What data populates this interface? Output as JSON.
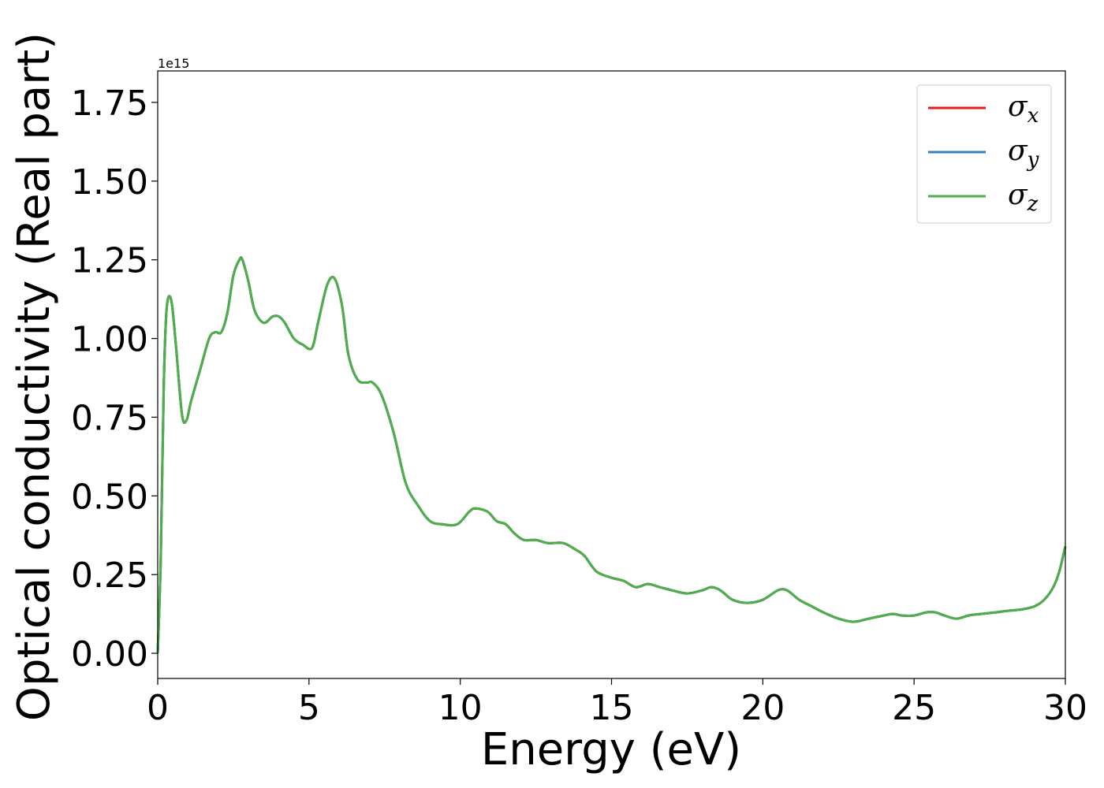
{
  "chart_data": {
    "type": "line",
    "title": "",
    "xlabel": "Energy (eV)",
    "ylabel": "Optical conductivity (Real part)",
    "y_offset_label": "1e15",
    "xlim": [
      0,
      30
    ],
    "ylim": [
      -0.08,
      1.85
    ],
    "xticks": [
      0,
      5,
      10,
      15,
      20,
      25,
      30
    ],
    "xtick_labels": [
      "0",
      "5",
      "10",
      "15",
      "20",
      "25",
      "30"
    ],
    "yticks": [
      0.0,
      0.25,
      0.5,
      0.75,
      1.0,
      1.25,
      1.5,
      1.75
    ],
    "ytick_labels": [
      "0.00",
      "0.25",
      "0.50",
      "0.75",
      "1.00",
      "1.25",
      "1.50",
      "1.75"
    ],
    "grid": false,
    "legend_position": "top-right",
    "x": [
      0,
      0.1,
      0.2,
      0.3,
      0.45,
      0.6,
      0.8,
      0.95,
      1.1,
      1.4,
      1.7,
      1.9,
      2.1,
      2.3,
      2.5,
      2.7,
      2.8,
      3.0,
      3.2,
      3.5,
      3.8,
      4.0,
      4.2,
      4.5,
      4.8,
      5.1,
      5.3,
      5.6,
      5.85,
      6.1,
      6.3,
      6.6,
      6.9,
      7.1,
      7.4,
      7.8,
      8.2,
      8.6,
      9.0,
      9.4,
      9.9,
      10.3,
      10.5,
      10.9,
      11.2,
      11.5,
      11.8,
      12.1,
      12.5,
      12.9,
      13.4,
      13.8,
      14.1,
      14.5,
      15.0,
      15.4,
      15.8,
      16.2,
      16.6,
      17.0,
      17.5,
      18.0,
      18.3,
      18.6,
      19.0,
      19.5,
      20.0,
      20.5,
      20.8,
      21.2,
      21.6,
      22.0,
      22.5,
      23.0,
      23.5,
      24.0,
      24.3,
      24.6,
      25.0,
      25.4,
      25.7,
      26.0,
      26.4,
      26.8,
      27.2,
      27.7,
      28.1,
      28.6,
      29.0,
      29.3,
      29.6,
      29.8,
      30.0
    ],
    "series": [
      {
        "name": "σ",
        "subscript": "x",
        "color": "#e41a1c",
        "values": [
          0.0,
          0.3,
          0.85,
          1.1,
          1.12,
          0.98,
          0.76,
          0.74,
          0.8,
          0.9,
          1.0,
          1.02,
          1.02,
          1.08,
          1.2,
          1.25,
          1.25,
          1.18,
          1.09,
          1.05,
          1.07,
          1.07,
          1.05,
          1.0,
          0.98,
          0.97,
          1.05,
          1.17,
          1.19,
          1.1,
          0.95,
          0.87,
          0.86,
          0.86,
          0.82,
          0.7,
          0.54,
          0.47,
          0.42,
          0.41,
          0.41,
          0.45,
          0.46,
          0.45,
          0.42,
          0.41,
          0.38,
          0.36,
          0.36,
          0.35,
          0.35,
          0.33,
          0.31,
          0.26,
          0.24,
          0.23,
          0.21,
          0.22,
          0.21,
          0.2,
          0.19,
          0.2,
          0.21,
          0.2,
          0.17,
          0.16,
          0.17,
          0.2,
          0.2,
          0.17,
          0.15,
          0.13,
          0.11,
          0.1,
          0.11,
          0.12,
          0.125,
          0.12,
          0.12,
          0.13,
          0.13,
          0.12,
          0.11,
          0.12,
          0.125,
          0.13,
          0.135,
          0.14,
          0.15,
          0.17,
          0.21,
          0.26,
          0.34
        ]
      },
      {
        "name": "σ",
        "subscript": "y",
        "color": "#377eb8",
        "values": [
          0.0,
          0.3,
          0.85,
          1.1,
          1.12,
          0.98,
          0.76,
          0.74,
          0.8,
          0.9,
          1.0,
          1.02,
          1.02,
          1.08,
          1.2,
          1.25,
          1.25,
          1.18,
          1.09,
          1.05,
          1.07,
          1.07,
          1.05,
          1.0,
          0.98,
          0.97,
          1.05,
          1.17,
          1.19,
          1.1,
          0.95,
          0.87,
          0.86,
          0.86,
          0.82,
          0.7,
          0.54,
          0.47,
          0.42,
          0.41,
          0.41,
          0.45,
          0.46,
          0.45,
          0.42,
          0.41,
          0.38,
          0.36,
          0.36,
          0.35,
          0.35,
          0.33,
          0.31,
          0.26,
          0.24,
          0.23,
          0.21,
          0.22,
          0.21,
          0.2,
          0.19,
          0.2,
          0.21,
          0.2,
          0.17,
          0.16,
          0.17,
          0.2,
          0.2,
          0.17,
          0.15,
          0.13,
          0.11,
          0.1,
          0.11,
          0.12,
          0.125,
          0.12,
          0.12,
          0.13,
          0.13,
          0.12,
          0.11,
          0.12,
          0.125,
          0.13,
          0.135,
          0.14,
          0.15,
          0.17,
          0.21,
          0.26,
          0.34
        ]
      },
      {
        "name": "σ",
        "subscript": "z",
        "color": "#4daf4a",
        "values": [
          0.0,
          0.3,
          0.85,
          1.1,
          1.12,
          0.98,
          0.76,
          0.74,
          0.8,
          0.9,
          1.0,
          1.02,
          1.02,
          1.08,
          1.2,
          1.25,
          1.25,
          1.18,
          1.09,
          1.05,
          1.07,
          1.07,
          1.05,
          1.0,
          0.98,
          0.97,
          1.05,
          1.17,
          1.19,
          1.1,
          0.95,
          0.87,
          0.86,
          0.86,
          0.82,
          0.7,
          0.54,
          0.47,
          0.42,
          0.41,
          0.41,
          0.45,
          0.46,
          0.45,
          0.42,
          0.41,
          0.38,
          0.36,
          0.36,
          0.35,
          0.35,
          0.33,
          0.31,
          0.26,
          0.24,
          0.23,
          0.21,
          0.22,
          0.21,
          0.2,
          0.19,
          0.2,
          0.21,
          0.2,
          0.17,
          0.16,
          0.17,
          0.2,
          0.2,
          0.17,
          0.15,
          0.13,
          0.11,
          0.1,
          0.11,
          0.12,
          0.125,
          0.12,
          0.12,
          0.13,
          0.13,
          0.12,
          0.11,
          0.12,
          0.125,
          0.13,
          0.135,
          0.14,
          0.15,
          0.17,
          0.21,
          0.26,
          0.34
        ]
      }
    ]
  }
}
